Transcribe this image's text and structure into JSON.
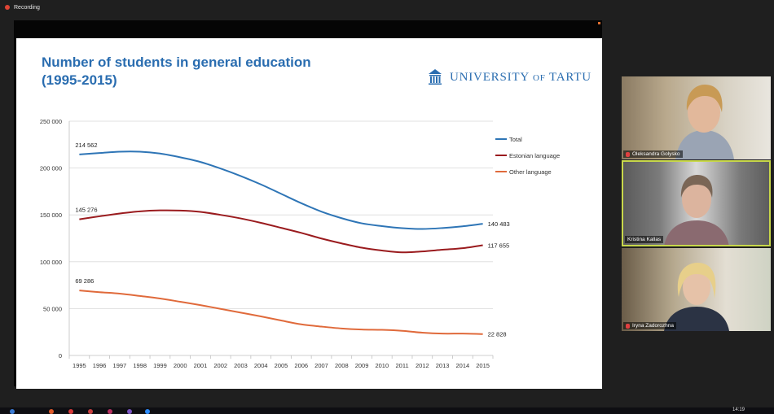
{
  "recording_label": "Recording",
  "slide": {
    "title_line1": "Number of students in general education",
    "title_line2": "(1995-2015)",
    "logo_text_main": "UNIVERSITY",
    "logo_text_of": "OF",
    "logo_text_end": "TARTU"
  },
  "chart_data": {
    "type": "line",
    "title": "Number of students in general education (1995-2015)",
    "x": [
      "1995",
      "1996",
      "1997",
      "1998",
      "1999",
      "2000",
      "2001",
      "2002",
      "2003",
      "2004",
      "2005",
      "2006",
      "2007",
      "2008",
      "2009",
      "2010",
      "2011",
      "2012",
      "2013",
      "2014",
      "2015"
    ],
    "yticks": [
      "250 000",
      "200 000",
      "150 000",
      "100 000",
      "50 000",
      "0"
    ],
    "ylim": [
      0,
      250000
    ],
    "legend_position": "right",
    "series": [
      {
        "name": "Total",
        "color": "#2e75b6",
        "start_label": "214 562",
        "end_label": "140 483",
        "values": [
          214562,
          216000,
          217500,
          217500,
          215500,
          211500,
          206500,
          199500,
          191500,
          182500,
          172500,
          162500,
          153500,
          146500,
          141000,
          138000,
          135800,
          135000,
          136000,
          137800,
          140483
        ]
      },
      {
        "name": "Estonian language",
        "color": "#9a1b1e",
        "start_label": "145 276",
        "end_label": "117 655",
        "values": [
          145276,
          148500,
          151500,
          153800,
          154800,
          154600,
          153200,
          150000,
          146200,
          141500,
          136200,
          130800,
          124800,
          119600,
          115000,
          112000,
          110000,
          111000,
          112800,
          114500,
          117655
        ]
      },
      {
        "name": "Other language",
        "color": "#e06a3b",
        "start_label": "69 286",
        "end_label": "22 828",
        "values": [
          69286,
          67500,
          66000,
          63500,
          60800,
          57300,
          53700,
          49700,
          45700,
          41700,
          37300,
          33200,
          30800,
          28800,
          27700,
          27300,
          26300,
          24300,
          23300,
          23300,
          22828
        ]
      }
    ]
  },
  "participants": [
    {
      "name": "Oleksandra Golysko"
    },
    {
      "name": "Kristina Kallas"
    },
    {
      "name": "Iryna Zadorozhna"
    }
  ],
  "taskbar": {
    "time": "14:19"
  }
}
